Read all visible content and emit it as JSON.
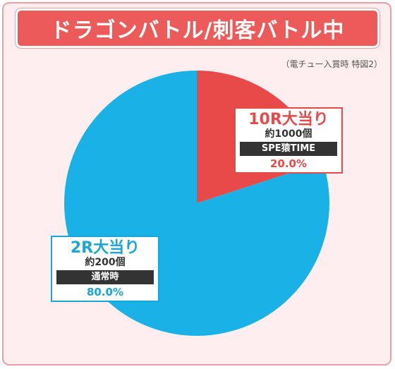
{
  "title": "ドラゴンバトル/刺客バトル中",
  "subnote": "（電チュー入賞時 特図2）",
  "colors": {
    "frame_bg": "#ffeef0",
    "title_bg": "#ec5a5a",
    "slice_red": "#e84a4a",
    "slice_blue": "#1ab2e6"
  },
  "chart_data": {
    "type": "pie",
    "slices": [
      {
        "label": "10R大当り",
        "payout": "約1000個",
        "mode": "SPE猿TIME",
        "value": 20.0,
        "value_label": "20.0%",
        "color": "#e84a4a"
      },
      {
        "label": "2R大当り",
        "payout": "約200個",
        "mode": "通常時",
        "value": 80.0,
        "value_label": "80.0%",
        "color": "#1ab2e6"
      }
    ]
  }
}
